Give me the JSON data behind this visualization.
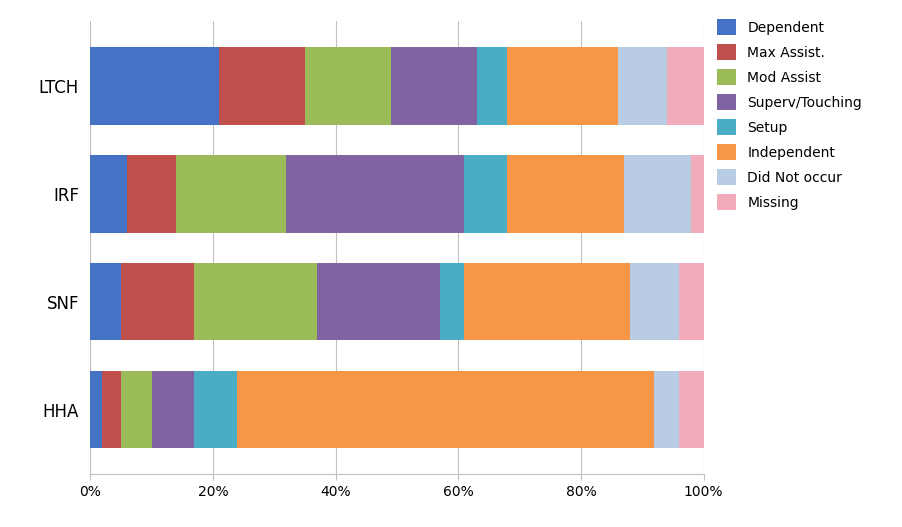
{
  "providers": [
    "LTCH",
    "IRF",
    "SNF",
    "HHA"
  ],
  "categories": [
    "Dependent",
    "Max Assist.",
    "Mod Assist",
    "Superv/Touching",
    "Setup",
    "Independent",
    "Did Not occur",
    "Missing"
  ],
  "colors": [
    "#4472C4",
    "#C0504D",
    "#9BBB59",
    "#8064A2",
    "#4BACC6",
    "#F79646",
    "#B8CCE4",
    "#F2ABBB"
  ],
  "data": {
    "LTCH": [
      21.0,
      14.0,
      14.0,
      14.0,
      5.0,
      18.0,
      8.0,
      6.0
    ],
    "IRF": [
      6.0,
      8.0,
      18.0,
      29.0,
      7.0,
      19.0,
      11.0,
      2.0
    ],
    "SNF": [
      5.0,
      12.0,
      20.0,
      20.0,
      4.0,
      27.0,
      8.0,
      4.0
    ],
    "HHA": [
      2.0,
      3.0,
      5.0,
      7.0,
      7.0,
      68.0,
      4.0,
      4.0
    ]
  },
  "background_color": "#FFFFFF",
  "grid_color": "#C0C0C0",
  "bar_height": 0.72,
  "figsize": [
    9.02,
    5.27
  ],
  "dpi": 100
}
